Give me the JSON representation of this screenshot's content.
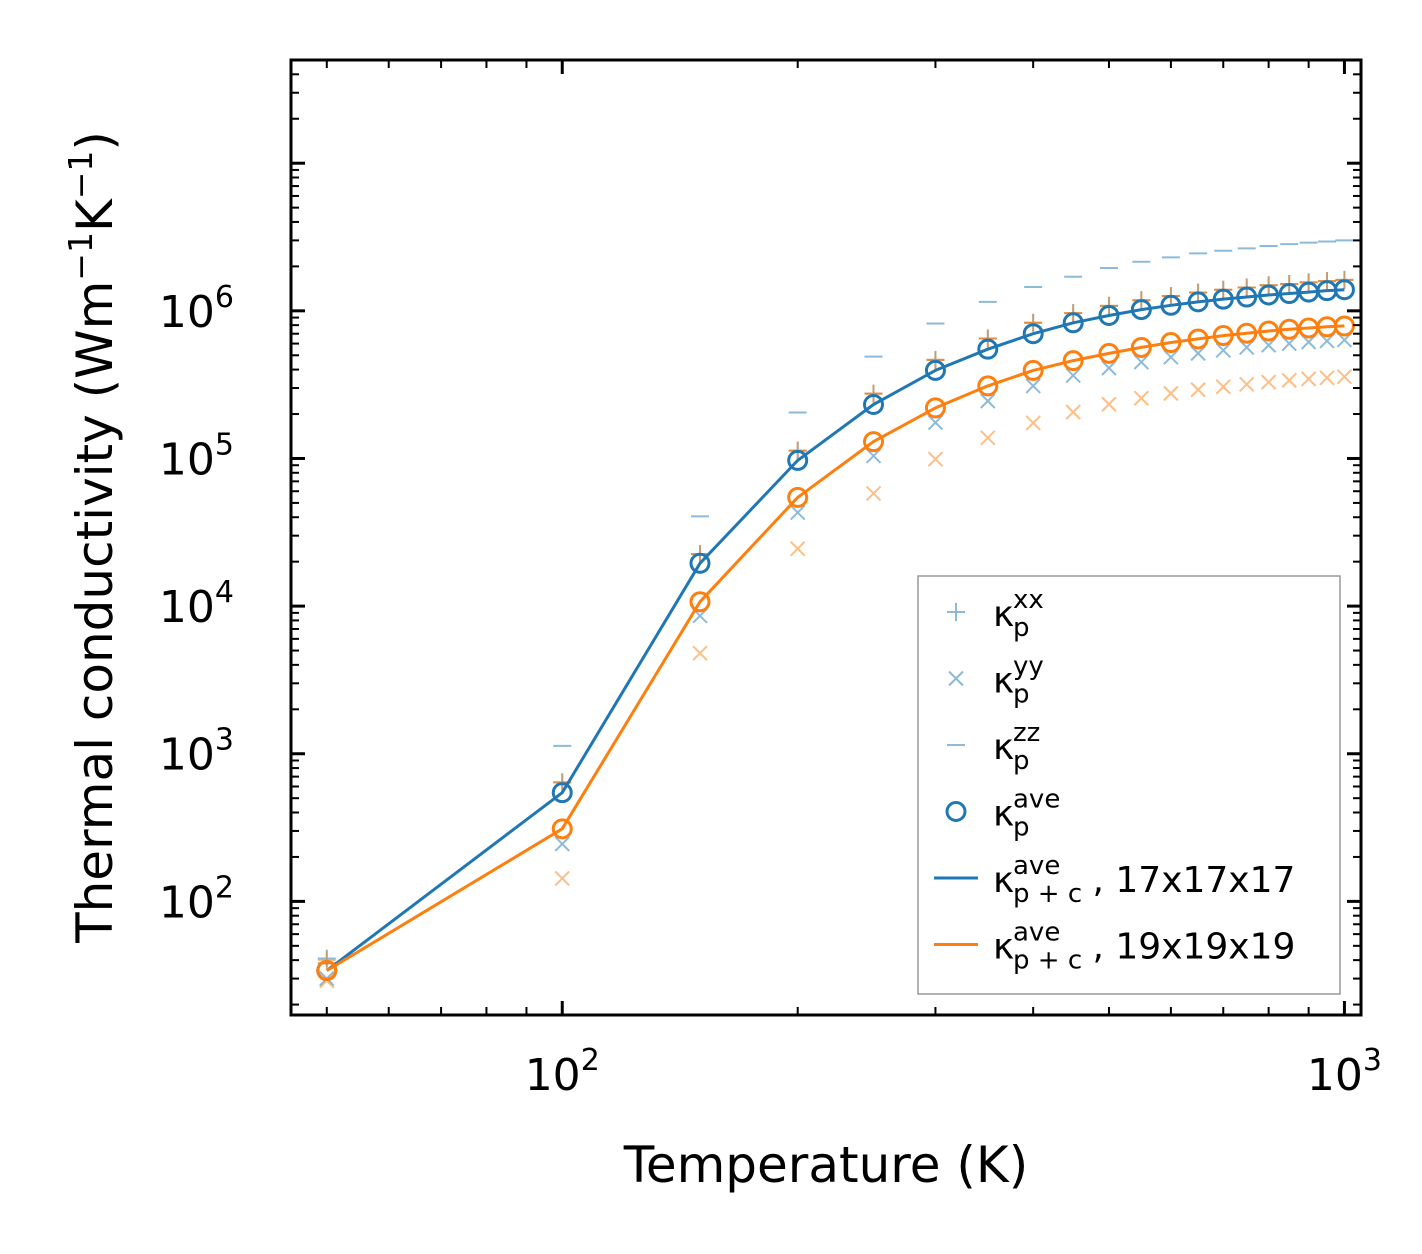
{
  "chart_data": {
    "type": "line",
    "xscale": "log",
    "yscale": "log",
    "xlim": [
      45,
      1050
    ],
    "ylim": [
      17,
      50000000
    ],
    "xlabel": "Temperature (K)",
    "ylabel": {
      "base": "Thermal conductivity (Wm",
      "sup1": "−1",
      "mid": "K",
      "sup2": "−1",
      "end": ")"
    },
    "xticks": [
      {
        "base": "10",
        "exp": "2",
        "value": 100
      },
      {
        "base": "10",
        "exp": "3",
        "value": 1000
      }
    ],
    "yticks": [
      {
        "base": "10",
        "exp": "2",
        "value": 100
      },
      {
        "base": "10",
        "exp": "3",
        "value": 1000
      },
      {
        "base": "10",
        "exp": "4",
        "value": 10000
      },
      {
        "base": "10",
        "exp": "5",
        "value": 100000
      },
      {
        "base": "10",
        "exp": "6",
        "value": 1000000
      }
    ],
    "x": [
      50,
      100,
      150,
      200,
      250,
      300,
      350,
      400,
      450,
      500,
      550,
      600,
      650,
      700,
      750,
      800,
      850,
      900,
      950,
      1000
    ],
    "colors": {
      "blue": "#1f77b4",
      "orange": "#ff7f0e"
    },
    "series": [
      {
        "name": "kxx_17",
        "marker": "+",
        "color": "#1f77b4",
        "alpha": 0.5,
        "values": [
          41,
          640,
          22500,
          113000,
          275000,
          465000,
          650000,
          830000,
          965000,
          1080000,
          1180000,
          1260000,
          1330000,
          1390000,
          1440000,
          1490000,
          1520000,
          1560000,
          1590000,
          1620000
        ]
      },
      {
        "name": "kyy_17",
        "marker": "x",
        "color": "#1f77b4",
        "alpha": 0.5,
        "values": [
          30,
          245,
          8600,
          43000,
          104000,
          175000,
          245000,
          310000,
          365000,
          410000,
          450000,
          485000,
          515000,
          540000,
          565000,
          585000,
          600000,
          615000,
          625000,
          635000
        ]
      },
      {
        "name": "kzz_17",
        "marker": "_",
        "color": "#1f77b4",
        "alpha": 0.5,
        "values": [
          38,
          1130,
          40500,
          205000,
          490000,
          820000,
          1150000,
          1450000,
          1700000,
          1950000,
          2150000,
          2300000,
          2450000,
          2550000,
          2650000,
          2750000,
          2830000,
          2900000,
          2950000,
          3000000
        ]
      },
      {
        "name": "kxx_19",
        "marker": "+",
        "color": "#ff7f0e",
        "alpha": 0.5,
        "values": [
          40,
          640,
          22500,
          113000,
          275000,
          465000,
          650000,
          830000,
          965000,
          1080000,
          1180000,
          1260000,
          1330000,
          1390000,
          1440000,
          1490000,
          1520000,
          1560000,
          1590000,
          1620000
        ]
      },
      {
        "name": "kyy_19",
        "marker": "x",
        "color": "#ff7f0e",
        "alpha": 0.5,
        "values": [
          29,
          143,
          4800,
          24500,
          58000,
          99000,
          138000,
          174000,
          206000,
          233000,
          256000,
          276000,
          292000,
          306000,
          318000,
          329000,
          338000,
          346000,
          352000,
          358000
        ]
      },
      {
        "name": "kzz_19",
        "marker": "_",
        "color": "#ff7f0e",
        "alpha": 0.5,
        "values": [
          38,
          640,
          22500,
          113000,
          275000,
          465000,
          650000,
          830000,
          965000,
          1080000,
          1180000,
          1260000,
          1330000,
          1390000,
          1440000,
          1490000,
          1520000,
          1560000,
          1590000,
          1620000
        ]
      },
      {
        "name": "kave_p_17",
        "marker": "o",
        "color": "#1f77b4",
        "alpha": 1,
        "values": [
          34,
          545,
          19500,
          97000,
          232000,
          395000,
          550000,
          700000,
          830000,
          930000,
          1020000,
          1090000,
          1150000,
          1200000,
          1240000,
          1280000,
          1310000,
          1340000,
          1370000,
          1390000
        ]
      },
      {
        "name": "kave_pc_17",
        "marker": "line",
        "color": "#1f77b4",
        "alpha": 1,
        "values": [
          34,
          545,
          19500,
          97000,
          232000,
          395000,
          550000,
          700000,
          830000,
          930000,
          1020000,
          1090000,
          1150000,
          1200000,
          1240000,
          1280000,
          1310000,
          1340000,
          1370000,
          1390000
        ]
      },
      {
        "name": "kave_p_19",
        "marker": "o",
        "color": "#ff7f0e",
        "alpha": 1,
        "values": [
          34,
          310,
          10700,
          54500,
          130000,
          220000,
          310000,
          395000,
          460000,
          515000,
          565000,
          610000,
          645000,
          680000,
          705000,
          730000,
          750000,
          765000,
          780000,
          790000
        ]
      },
      {
        "name": "kave_pc_19",
        "marker": "line",
        "color": "#ff7f0e",
        "alpha": 1,
        "values": [
          34,
          310,
          10700,
          54500,
          130000,
          220000,
          310000,
          395000,
          460000,
          515000,
          565000,
          610000,
          645000,
          680000,
          705000,
          730000,
          750000,
          765000,
          780000,
          790000
        ]
      }
    ],
    "legend": {
      "position": "lower right",
      "entries": [
        {
          "marker": "+",
          "color": "#1f77b4",
          "alpha": 0.5,
          "sym": "κ",
          "sub": "p",
          "sup": "xx",
          "suffix": ""
        },
        {
          "marker": "x",
          "color": "#1f77b4",
          "alpha": 0.5,
          "sym": "κ",
          "sub": "p",
          "sup": "yy",
          "suffix": ""
        },
        {
          "marker": "_",
          "color": "#1f77b4",
          "alpha": 0.5,
          "sym": "κ",
          "sub": "p",
          "sup": "zz",
          "suffix": ""
        },
        {
          "marker": "o",
          "color": "#1f77b4",
          "alpha": 1,
          "sym": "κ",
          "sub": "p",
          "sup": "ave",
          "suffix": ""
        },
        {
          "marker": "line",
          "color": "#1f77b4",
          "alpha": 1,
          "sym": "κ",
          "sub": "p + c",
          "sup": "ave",
          "suffix": ", 17x17x17"
        },
        {
          "marker": "line",
          "color": "#ff7f0e",
          "alpha": 1,
          "sym": "κ",
          "sub": "p + c",
          "sup": "ave",
          "suffix": ", 19x19x19"
        }
      ]
    }
  }
}
